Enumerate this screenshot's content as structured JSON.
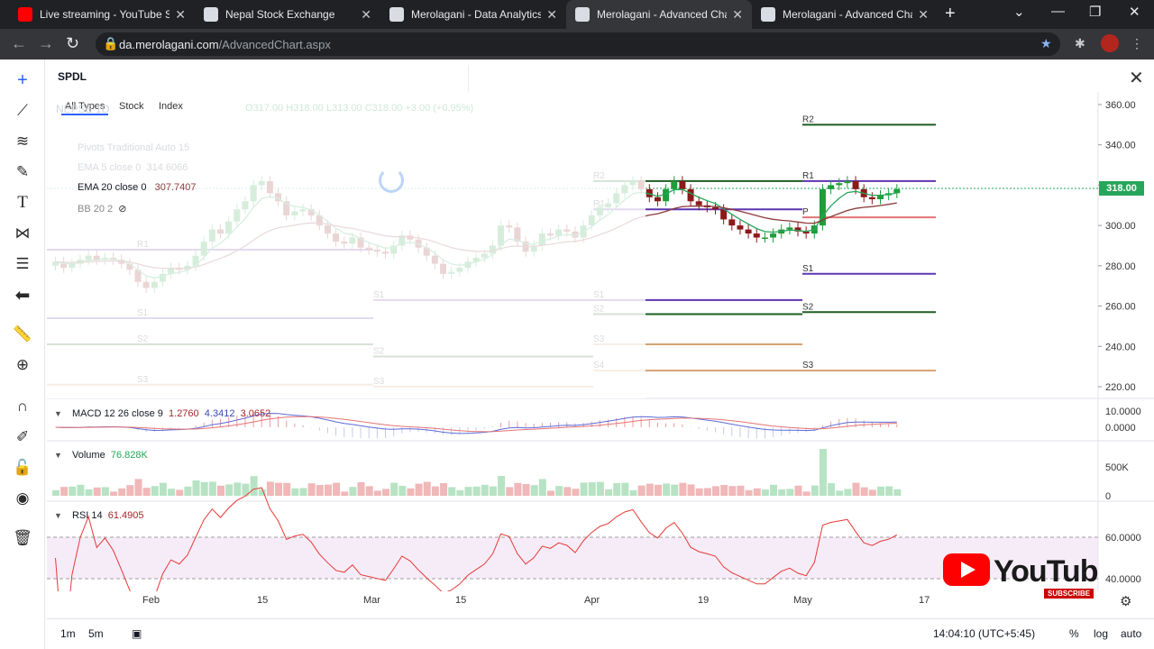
{
  "browser": {
    "tabs": [
      {
        "title": "Live streaming - YouTube Studio",
        "favicon_color": "#ff0000"
      },
      {
        "title": "Nepal Stock Exchange",
        "favicon_color": "#d9dde3"
      },
      {
        "title": "Merolagani - Data Analytics Pl",
        "favicon_color": "#d9dde3"
      },
      {
        "title": "Merolagani - Advanced Chart",
        "favicon_color": "#d9dde3",
        "active": true
      },
      {
        "title": "Merolagani - Advanced Chart",
        "favicon_color": "#d9dde3"
      }
    ],
    "url_host": "da.merolagani.com",
    "url_path": "/AdvancedChart.aspx"
  },
  "toolbar": {
    "icons": [
      "crosshair-icon",
      "trend-line-icon",
      "fib-icon",
      "brush-icon",
      "text-icon",
      "pattern-icon",
      "prediction-icon",
      "back-icon",
      "ruler-icon",
      "zoom-in-icon",
      "magnet-icon",
      "pencil-lock-icon",
      "lock-icon",
      "eye-icon",
      "trash-icon"
    ]
  },
  "search": {
    "value": "SPDL",
    "filters": [
      "All Types",
      "Stock",
      "Index"
    ]
  },
  "legend": {
    "ticker_faded": "NEPSE  1D",
    "ohlc_faded": "O317.00  H318.00  L313.00  C318.00  +3.00 (+0.95%)",
    "pivots_faded": "Pivots Traditional Auto 15",
    "ema5": {
      "label": "EMA 5 close 0",
      "value": "314.6066"
    },
    "ema20": {
      "label": "EMA 20 close 0",
      "value": "307.7407"
    },
    "bb": {
      "label": "BB 20 2"
    }
  },
  "macd": {
    "label": "MACD 12 26 close 9",
    "v1": "1.2760",
    "v2": "4.3412",
    "v3": "3.0652"
  },
  "volume": {
    "label": "Volume",
    "value": "76.828K"
  },
  "rsi": {
    "label": "RSI 14",
    "value": "61.4905"
  },
  "price_badge": "318.00",
  "time_axis": [
    "Feb",
    "15",
    "Mar",
    "15",
    "Apr",
    "19",
    "May",
    "17"
  ],
  "bottom": {
    "ranges": [
      "1m",
      "5m"
    ],
    "clock": "14:04:10 (UTC+5:45)",
    "pct": "%",
    "log": "log",
    "auto": "auto"
  },
  "youtube": {
    "subscribe": "SUBSCRIBE",
    "wordmark": "YouTube"
  },
  "chart_data": {
    "type": "candlestick",
    "price_axis_ticks": [
      220,
      240,
      260,
      280,
      300,
      320,
      340,
      360
    ],
    "macd_axis_ticks": [
      "0.0000",
      "10.0000"
    ],
    "volume_axis_ticks": [
      "0",
      "500K"
    ],
    "rsi_axis_ticks": [
      "40.0000",
      "60.0000"
    ],
    "last_price": 318,
    "pivot_labels": [
      "R2",
      "R1",
      "P",
      "S1",
      "S2",
      "S3",
      "S4"
    ],
    "pivot_blocks": [
      {
        "R1": 288,
        "S1": 254,
        "S2": 241,
        "S3": 221
      },
      {
        "S1": 263,
        "S2": 235,
        "S3": 220
      },
      {
        "R2": 322,
        "R1": 308,
        "S1": 263,
        "S2": 256,
        "S3": 241,
        "S4": 228
      },
      {
        "R2": 350,
        "R1": 322,
        "P": 304,
        "S1": 276,
        "S2": 257,
        "S3": 228
      }
    ],
    "closes": [
      282,
      279,
      281,
      283,
      285,
      283,
      284,
      283,
      281,
      278,
      272,
      269,
      272,
      276,
      279,
      278,
      280,
      285,
      292,
      298,
      296,
      302,
      308,
      312,
      320,
      322,
      316,
      312,
      305,
      307,
      308,
      305,
      300,
      296,
      292,
      291,
      294,
      289,
      288,
      287,
      286,
      290,
      295,
      293,
      289,
      285,
      281,
      276,
      277,
      279,
      282,
      284,
      286,
      290,
      300,
      299,
      292,
      287,
      290,
      296,
      295,
      298,
      297,
      294,
      300,
      305,
      309,
      311,
      316,
      320,
      322,
      318,
      314,
      312,
      318,
      322,
      318,
      312,
      310,
      309,
      308,
      303,
      300,
      298,
      296,
      294,
      294,
      296,
      298,
      299,
      297,
      296,
      300,
      318,
      320,
      321,
      322,
      318,
      314,
      313,
      315,
      316,
      318
    ]
  }
}
